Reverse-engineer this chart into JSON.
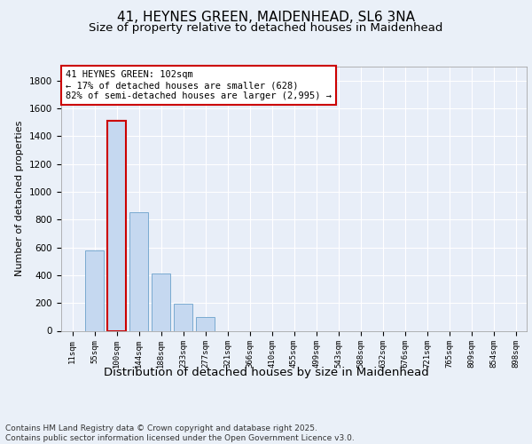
{
  "title": "41, HEYNES GREEN, MAIDENHEAD, SL6 3NA",
  "subtitle": "Size of property relative to detached houses in Maidenhead",
  "xlabel": "Distribution of detached houses by size in Maidenhead",
  "ylabel": "Number of detached properties",
  "footer_line1": "Contains HM Land Registry data © Crown copyright and database right 2025.",
  "footer_line2": "Contains public sector information licensed under the Open Government Licence v3.0.",
  "categories": [
    "11sqm",
    "55sqm",
    "100sqm",
    "144sqm",
    "188sqm",
    "233sqm",
    "277sqm",
    "321sqm",
    "366sqm",
    "410sqm",
    "455sqm",
    "499sqm",
    "543sqm",
    "588sqm",
    "632sqm",
    "676sqm",
    "721sqm",
    "765sqm",
    "809sqm",
    "854sqm",
    "898sqm"
  ],
  "values": [
    0,
    580,
    1510,
    850,
    410,
    195,
    100,
    0,
    0,
    0,
    0,
    0,
    0,
    0,
    0,
    0,
    0,
    0,
    0,
    0,
    0
  ],
  "bar_color": "#c5d8f0",
  "bar_edge_color": "#7aaad0",
  "highlight_bar_index": 2,
  "highlight_bar_edge_color": "#cc0000",
  "annotation_box_text": "41 HEYNES GREEN: 102sqm\n← 17% of detached houses are smaller (628)\n82% of semi-detached houses are larger (2,995) →",
  "ylim": [
    0,
    1900
  ],
  "yticks": [
    0,
    200,
    400,
    600,
    800,
    1000,
    1200,
    1400,
    1600,
    1800
  ],
  "bg_color": "#eaf0f8",
  "plot_bg_color": "#e8eef8",
  "grid_color": "#ffffff",
  "title_fontsize": 11,
  "subtitle_fontsize": 9.5,
  "xlabel_fontsize": 9.5,
  "ylabel_fontsize": 8,
  "footer_fontsize": 6.5
}
